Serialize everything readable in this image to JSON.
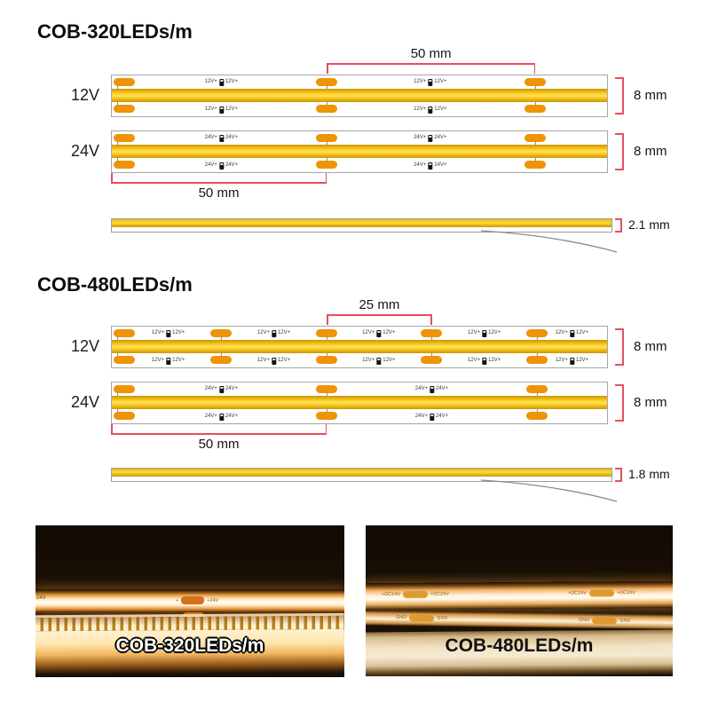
{
  "colors": {
    "accent_red": "#e4505e",
    "pad_orange": "#ef9307",
    "strip_yellow": "#f7c913",
    "border_gray": "#a6a6a6"
  },
  "sections": [
    {
      "title": "COB-320LEDs/m",
      "rows": [
        {
          "voltage": "12V",
          "pad_label": "12V+",
          "pads_pct": [
            1,
            43.4,
            85.4
          ],
          "labels_pct": [
            22.1,
            64.3
          ],
          "bracket_top": {
            "label": "50 mm",
            "from_pct": 43.4,
            "to_pct": 85.4
          },
          "bracket_right": {
            "label": "8 mm"
          }
        },
        {
          "voltage": "24V",
          "pad_label": "24V+",
          "pads_pct": [
            1,
            43.4,
            85.4
          ],
          "labels_pct": [
            22.1,
            64.3
          ],
          "bracket_bottom": {
            "label": "50 mm",
            "from_pct": 0,
            "to_pct": 43.4
          },
          "bracket_right": {
            "label": "8 mm"
          }
        }
      ],
      "side_view": {
        "label": "2.1 mm"
      }
    },
    {
      "title": "COB-480LEDs/m",
      "rows": [
        {
          "voltage": "12V",
          "pad_label": "12V+",
          "pads_pct": [
            1,
            22.1,
            43.4,
            64.6,
            85.9
          ],
          "labels_pct": [
            11.4,
            32.7,
            53.9,
            75.2,
            92.9
          ],
          "bracket_top": {
            "label": "25 mm",
            "from_pct": 43.4,
            "to_pct": 64.6
          },
          "bracket_right": {
            "label": "8 mm"
          }
        },
        {
          "voltage": "24V",
          "pad_label": "24V+",
          "pads_pct": [
            1,
            43.4,
            85.9
          ],
          "labels_pct": [
            22.1,
            64.6
          ],
          "bracket_bottom": {
            "label": "50 mm",
            "from_pct": 0,
            "to_pct": 43.4
          },
          "bracket_right": {
            "label": "8 mm"
          }
        }
      ],
      "side_view": {
        "label": "1.8 mm"
      }
    }
  ],
  "photos": {
    "left": {
      "caption": "COB-320LEDs/m",
      "corner_label": "24V",
      "pad_left_text": "+",
      "pad_right_text": "+24V"
    },
    "right": {
      "caption": "COB-480LEDs/m",
      "power_label": "+DC24V",
      "gnd_label": "GND"
    }
  }
}
